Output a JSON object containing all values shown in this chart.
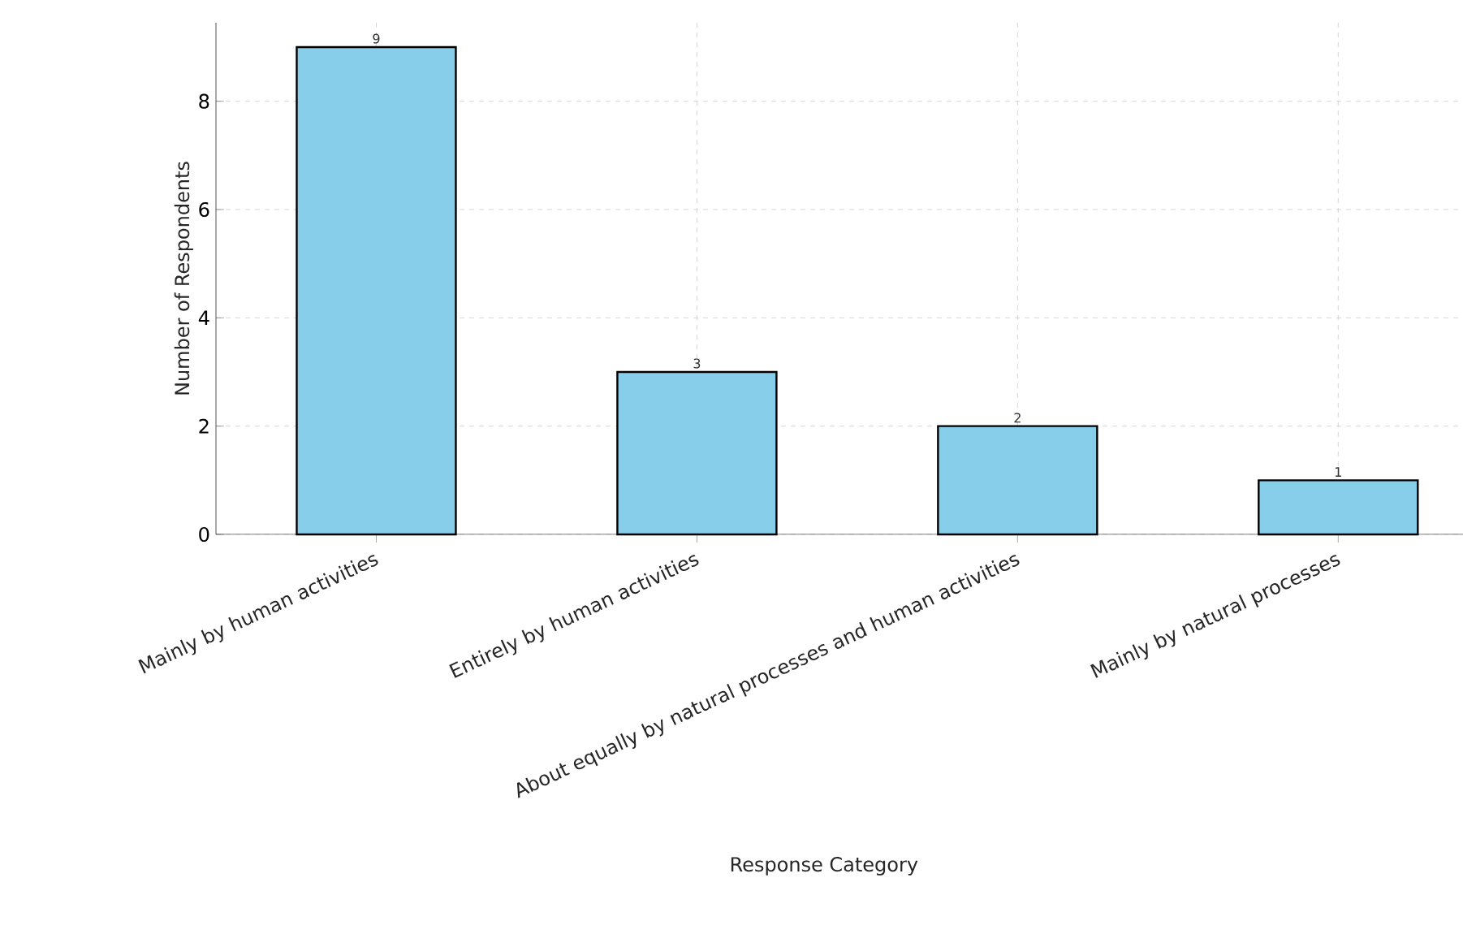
{
  "chart_data": {
    "type": "bar",
    "xlabel": "Response Category",
    "ylabel": "Number of Respondents",
    "categories": [
      "Mainly by human activities",
      "Entirely by human activities",
      "About equally by natural processes and human activities",
      "Mainly by natural processes"
    ],
    "values": [
      9,
      3,
      2,
      1
    ],
    "color": "#87ceeb",
    "ylim": [
      0,
      9.45
    ],
    "yticks": [
      0,
      2,
      4,
      6,
      8
    ],
    "grid": true,
    "data_labels": true
  }
}
